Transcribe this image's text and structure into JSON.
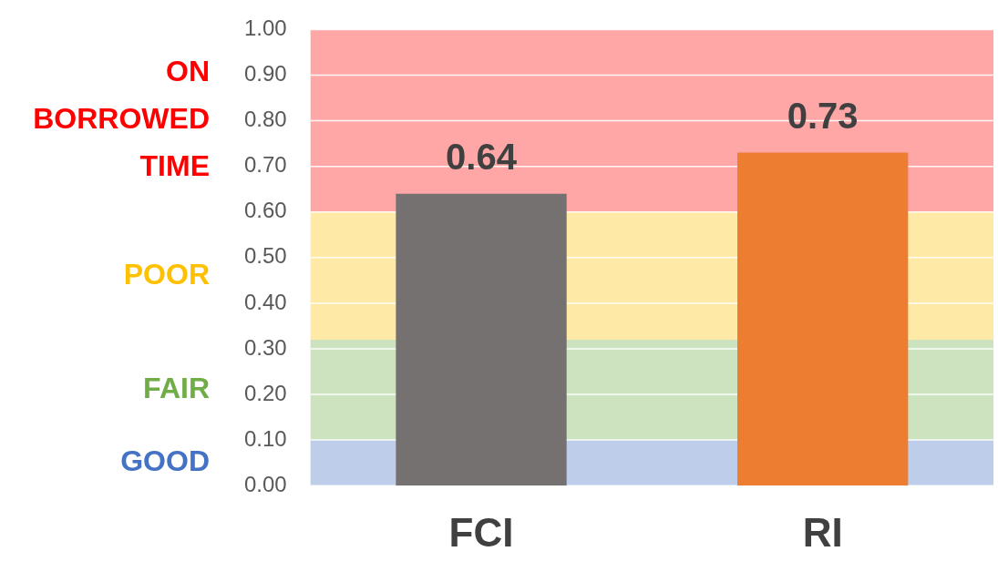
{
  "chart_data": {
    "type": "bar",
    "categories": [
      "FCI",
      "RI"
    ],
    "values": [
      0.64,
      0.73
    ],
    "colors": [
      "#767171",
      "#ed7d31"
    ],
    "ylim": [
      0,
      1
    ],
    "yticks": [
      {
        "value": 0,
        "label": "0.00"
      },
      {
        "value": 0.1,
        "label": "0.10"
      },
      {
        "value": 0.2,
        "label": "0.20"
      },
      {
        "value": 0.3,
        "label": "0.30"
      },
      {
        "value": 0.4,
        "label": "0.40"
      },
      {
        "value": 0.5,
        "label": "0.50"
      },
      {
        "value": 0.6,
        "label": "0.60"
      },
      {
        "value": 0.7,
        "label": "0.70"
      },
      {
        "value": 0.8,
        "label": "0.80"
      },
      {
        "value": 0.9,
        "label": "0.90"
      },
      {
        "value": 1,
        "label": "1.00"
      }
    ],
    "grid": "y",
    "data_labels": true,
    "bands": [
      {
        "axis": "y",
        "from": 0,
        "to": 0.1,
        "label": "GOOD",
        "color": "#4472c4"
      },
      {
        "axis": "y",
        "from": 0.1,
        "to": 0.32,
        "label": "FAIR",
        "color": "#70ad47"
      },
      {
        "axis": "y",
        "from": 0.32,
        "to": 0.6,
        "label": "POOR",
        "color": "#ffc000"
      },
      {
        "axis": "y",
        "from": 0.6,
        "to": 1,
        "label": "ON BORROWED TIME",
        "color": "#ff0000"
      }
    ]
  }
}
